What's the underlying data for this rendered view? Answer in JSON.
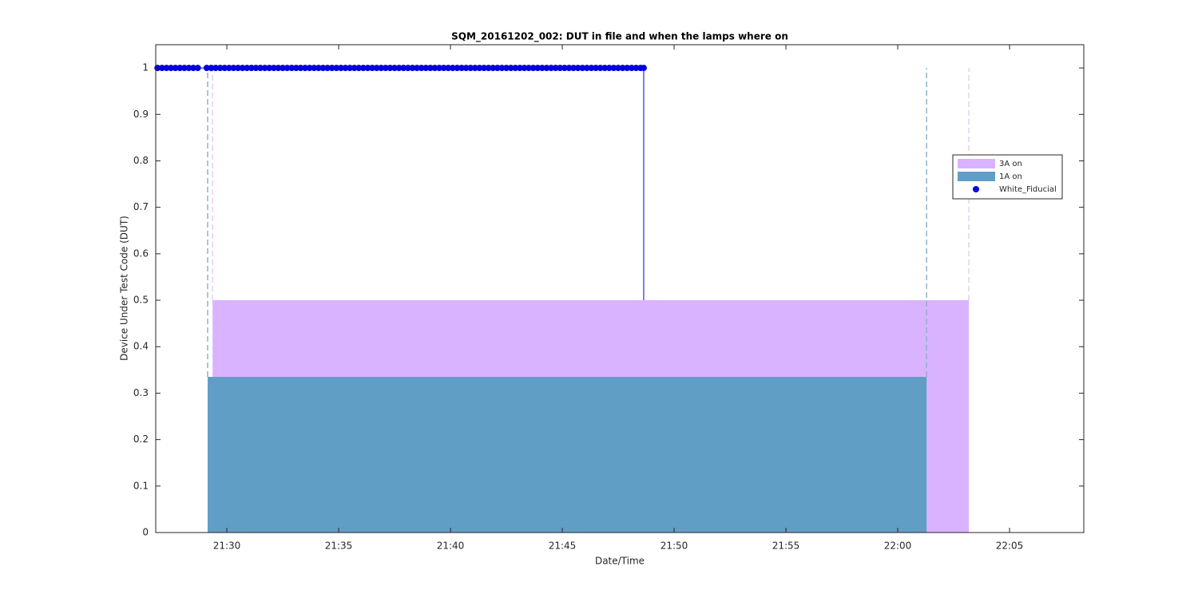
{
  "chart_data": {
    "type": "area",
    "title": "SQM_20161202_002: DUT in file and when the lamps where on",
    "xlabel": "Date/Time",
    "ylabel": "Device Under Test Code (DUT)",
    "xlim": [
      1286.82,
      1328.32
    ],
    "xticks": [
      {
        "value": 1290,
        "label": "21:30"
      },
      {
        "value": 1295,
        "label": "21:35"
      },
      {
        "value": 1300,
        "label": "21:40"
      },
      {
        "value": 1305,
        "label": "21:45"
      },
      {
        "value": 1310,
        "label": "21:50"
      },
      {
        "value": 1315,
        "label": "21:55"
      },
      {
        "value": 1320,
        "label": "22:00"
      },
      {
        "value": 1325,
        "label": "22:05"
      }
    ],
    "ylim": [
      0,
      1.05
    ],
    "yticks": [
      0,
      0.1,
      0.2,
      0.3,
      0.4,
      0.5,
      0.6,
      0.7,
      0.8,
      0.9,
      1
    ],
    "grid": false,
    "legend": "east",
    "series": [
      {
        "type": "line",
        "color": "#0000e0",
        "x": [
          1308.64,
          1308.64,
          1328.32
        ],
        "values": [
          1,
          0,
          0
        ]
      },
      {
        "name": "3A on",
        "type": "area",
        "color": "#d9b3ff",
        "edge_color": "#e3cdfb",
        "x": [
          1289.36,
          1323.18
        ],
        "values": [
          0.5,
          0.5
        ]
      },
      {
        "name": "1A on",
        "type": "area",
        "color": "#619ec6",
        "edge_color": "#8eb3cc",
        "x": [
          1289.14,
          1321.29
        ],
        "values": [
          0.335,
          0.335
        ]
      },
      {
        "name": "White_Fiducial",
        "type": "scatter",
        "color": "#0000e0",
        "x": [
          1286.9,
          1287.1,
          1287.3,
          1287.5,
          1287.7,
          1287.9,
          1288.1,
          1288.3,
          1288.5,
          1288.7,
          1289.1,
          1289.3,
          1289.5,
          1289.7,
          1289.9,
          1290.1,
          1290.3,
          1290.5,
          1290.7,
          1290.9,
          1291.1,
          1291.3,
          1291.5,
          1291.7,
          1291.9,
          1292.1,
          1292.3,
          1292.5,
          1292.7,
          1292.9,
          1293.1,
          1293.3,
          1293.5,
          1293.7,
          1293.9,
          1294.1,
          1294.3,
          1294.5,
          1294.7,
          1294.9,
          1295.1,
          1295.3,
          1295.5,
          1295.7,
          1295.9,
          1296.1,
          1296.3,
          1296.5,
          1296.7,
          1296.9,
          1297.1,
          1297.3,
          1297.5,
          1297.7,
          1297.9,
          1298.1,
          1298.3,
          1298.5,
          1298.7,
          1298.9,
          1299.1,
          1299.3,
          1299.5,
          1299.7,
          1299.9,
          1300.1,
          1300.3,
          1300.5,
          1300.7,
          1300.9,
          1301.1,
          1301.3,
          1301.5,
          1301.7,
          1301.9,
          1302.1,
          1302.3,
          1302.5,
          1302.7,
          1302.9,
          1303.1,
          1303.3,
          1303.5,
          1303.7,
          1303.9,
          1304.1,
          1304.3,
          1304.5,
          1304.7,
          1304.9,
          1305.1,
          1305.3,
          1305.5,
          1305.7,
          1305.9,
          1306.1,
          1306.3,
          1306.5,
          1306.7,
          1306.9,
          1307.1,
          1307.3,
          1307.5,
          1307.7,
          1307.9,
          1308.1,
          1308.3,
          1308.5,
          1308.64
        ],
        "values": [
          1,
          1,
          1,
          1,
          1,
          1,
          1,
          1,
          1,
          1,
          1,
          1,
          1,
          1,
          1,
          1,
          1,
          1,
          1,
          1,
          1,
          1,
          1,
          1,
          1,
          1,
          1,
          1,
          1,
          1,
          1,
          1,
          1,
          1,
          1,
          1,
          1,
          1,
          1,
          1,
          1,
          1,
          1,
          1,
          1,
          1,
          1,
          1,
          1,
          1,
          1,
          1,
          1,
          1,
          1,
          1,
          1,
          1,
          1,
          1,
          1,
          1,
          1,
          1,
          1,
          1,
          1,
          1,
          1,
          1,
          1,
          1,
          1,
          1,
          1,
          1,
          1,
          1,
          1,
          1,
          1,
          1,
          1,
          1,
          1,
          1,
          1,
          1,
          1,
          1,
          1,
          1,
          1,
          1,
          1,
          1,
          1,
          1,
          1,
          1,
          1,
          1,
          1,
          1,
          1,
          1,
          1,
          1,
          1
        ]
      }
    ]
  }
}
